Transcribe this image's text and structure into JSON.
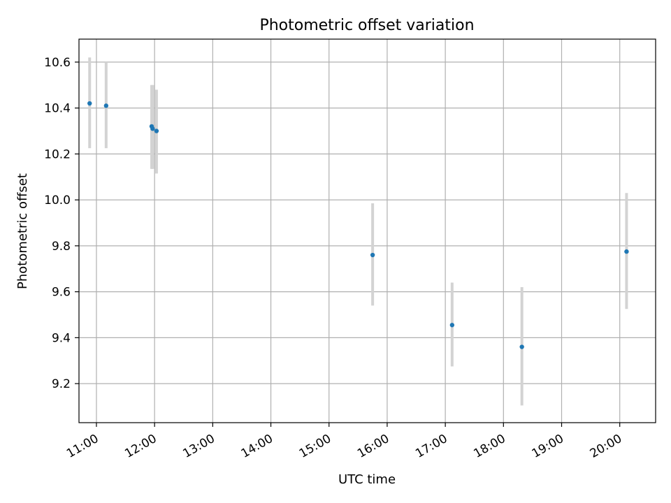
{
  "chart_data": {
    "type": "scatter",
    "title": "Photometric offset variation",
    "xlabel": "UTC time",
    "ylabel": "Photometric offset",
    "x_is_time": true,
    "xlim": [
      "10:42",
      "20:37"
    ],
    "ylim": [
      9.03,
      10.7
    ],
    "xticks": [
      "11:00",
      "12:00",
      "13:00",
      "14:00",
      "15:00",
      "16:00",
      "17:00",
      "18:00",
      "19:00",
      "20:00"
    ],
    "yticks": [
      "9.2",
      "9.4",
      "9.6",
      "9.8",
      "10.0",
      "10.2",
      "10.4",
      "10.6"
    ],
    "grid": true,
    "point_color": "#1f77b4",
    "errorbar_color": "#d3d3d3",
    "series": [
      {
        "points": [
          {
            "x": "10:53",
            "y": 10.42,
            "y_low": 10.225,
            "y_high": 10.62
          },
          {
            "x": "11:10",
            "y": 10.41,
            "y_low": 10.225,
            "y_high": 10.6
          },
          {
            "x": "11:57",
            "y": 10.32,
            "y_low": 10.135,
            "y_high": 10.5
          },
          {
            "x": "11:58",
            "y": 10.31,
            "y_low": 10.135,
            "y_high": 10.5
          },
          {
            "x": "12:02",
            "y": 10.3,
            "y_low": 10.115,
            "y_high": 10.48
          },
          {
            "x": "15:45",
            "y": 9.76,
            "y_low": 9.54,
            "y_high": 9.985
          },
          {
            "x": "17:07",
            "y": 9.455,
            "y_low": 9.275,
            "y_high": 9.64
          },
          {
            "x": "18:19",
            "y": 9.36,
            "y_low": 9.105,
            "y_high": 9.62
          },
          {
            "x": "20:07",
            "y": 9.775,
            "y_low": 9.525,
            "y_high": 10.03
          }
        ]
      }
    ]
  }
}
